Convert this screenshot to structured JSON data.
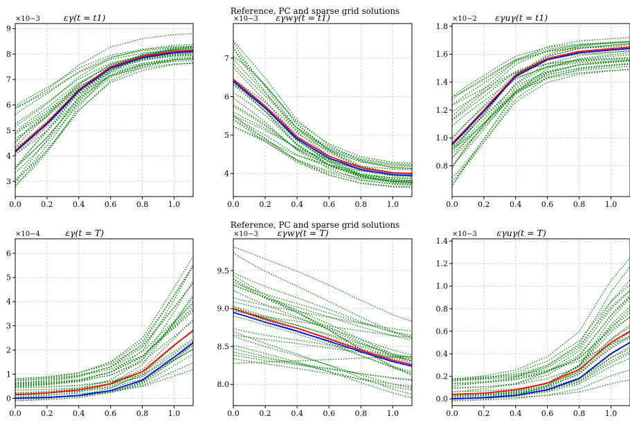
{
  "figure": {
    "suptitles": [
      "Reference, PC and sparse grid solutions",
      "Reference, PC and sparse grid solutions"
    ]
  },
  "colors": {
    "reference": "#ff0000",
    "mean": "#0000ff",
    "samples": "#008000",
    "grid": "#cccccc"
  },
  "chart_data": [
    {
      "type": "line",
      "title": "εγ(t = t1)",
      "multiplier": "×10−3",
      "xlim": [
        0,
        1.12
      ],
      "ylim": [
        2.4,
        9.2
      ],
      "xticks": [
        "0.0",
        "0.2",
        "0.4",
        "0.6",
        "0.8",
        "1.0"
      ],
      "xtick_values": [
        0,
        0.2,
        0.4,
        0.6,
        0.8,
        1.0
      ],
      "yticks": [
        "3",
        "4",
        "5",
        "6",
        "7",
        "8",
        "9"
      ],
      "ytick_values": [
        3,
        4,
        5,
        6,
        7,
        8,
        9
      ],
      "grid": true,
      "reference": {
        "x": [
          0,
          0.2,
          0.4,
          0.6,
          0.8,
          1.0,
          1.12
        ],
        "y": [
          4.2,
          5.3,
          6.6,
          7.5,
          7.9,
          8.1,
          8.15
        ]
      },
      "mean": {
        "x": [
          0,
          0.2,
          0.4,
          0.6,
          0.8,
          1.0,
          1.12
        ],
        "y": [
          4.15,
          5.25,
          6.55,
          7.45,
          7.85,
          8.05,
          8.1
        ]
      },
      "samples": {
        "count": 28,
        "x": [
          0,
          0.2,
          0.4,
          0.6,
          0.8,
          1.0,
          1.12
        ],
        "y_start_range": [
          2.7,
          6.0
        ],
        "y_end_range": [
          7.3,
          8.9
        ]
      }
    },
    {
      "type": "line",
      "title": "εγwγ(t = t1)",
      "multiplier": "×10−3",
      "xlim": [
        0,
        1.12
      ],
      "ylim": [
        3.4,
        7.9
      ],
      "xticks": [
        "0.0",
        "0.2",
        "0.4",
        "0.6",
        "0.8",
        "1.0"
      ],
      "xtick_values": [
        0,
        0.2,
        0.4,
        0.6,
        0.8,
        1.0
      ],
      "yticks": [
        "4",
        "5",
        "6",
        "7"
      ],
      "ytick_values": [
        4,
        5,
        6,
        7
      ],
      "grid": true,
      "reference": {
        "x": [
          0,
          0.2,
          0.4,
          0.6,
          0.8,
          1.0,
          1.12
        ],
        "y": [
          6.45,
          5.75,
          4.95,
          4.45,
          4.15,
          4.02,
          4.0
        ]
      },
      "mean": {
        "x": [
          0,
          0.2,
          0.4,
          0.6,
          0.8,
          1.0,
          1.12
        ],
        "y": [
          6.4,
          5.7,
          4.9,
          4.4,
          4.1,
          3.97,
          3.95
        ]
      },
      "samples": {
        "count": 28,
        "x": [
          0,
          0.2,
          0.4,
          0.6,
          0.8,
          1.0,
          1.12
        ],
        "y_start_range": [
          5.2,
          7.7
        ],
        "y_end_range": [
          3.6,
          4.4
        ]
      }
    },
    {
      "type": "line",
      "title": "εγuγ(t = t1)",
      "multiplier": "×10−2",
      "xlim": [
        0,
        1.12
      ],
      "ylim": [
        0.58,
        1.82
      ],
      "xticks": [
        "0.0",
        "0.2",
        "0.4",
        "0.6",
        "0.8",
        "1.0"
      ],
      "xtick_values": [
        0,
        0.2,
        0.4,
        0.6,
        0.8,
        1.0
      ],
      "yticks": [
        "0.8",
        "1.0",
        "1.2",
        "1.4",
        "1.6",
        "1.8"
      ],
      "ytick_values": [
        0.8,
        1.0,
        1.2,
        1.4,
        1.6,
        1.8
      ],
      "grid": true,
      "reference": {
        "x": [
          0,
          0.2,
          0.4,
          0.6,
          0.8,
          1.0,
          1.12
        ],
        "y": [
          0.96,
          1.2,
          1.45,
          1.57,
          1.62,
          1.64,
          1.65
        ]
      },
      "mean": {
        "x": [
          0,
          0.2,
          0.4,
          0.6,
          0.8,
          1.0,
          1.12
        ],
        "y": [
          0.95,
          1.19,
          1.44,
          1.56,
          1.61,
          1.63,
          1.64
        ]
      },
      "samples": {
        "count": 28,
        "x": [
          0,
          0.2,
          0.4,
          0.6,
          0.8,
          1.0,
          1.12
        ],
        "y_start_range": [
          0.63,
          1.3
        ],
        "y_end_range": [
          1.45,
          1.76
        ]
      }
    },
    {
      "type": "line",
      "title": "εγ(t = T)",
      "multiplier": "×10−4",
      "xlim": [
        0,
        1.12
      ],
      "ylim": [
        -0.3,
        6.6
      ],
      "xticks": [
        "0.0",
        "0.2",
        "0.4",
        "0.6",
        "0.8",
        "1.0"
      ],
      "xtick_values": [
        0,
        0.2,
        0.4,
        0.6,
        0.8,
        1.0
      ],
      "yticks": [
        "0",
        "1",
        "2",
        "3",
        "4",
        "5",
        "6"
      ],
      "ytick_values": [
        0,
        1,
        2,
        3,
        4,
        5,
        6
      ],
      "grid": true,
      "reference": {
        "x": [
          0,
          0.2,
          0.4,
          0.6,
          0.8,
          1.0,
          1.12
        ],
        "y": [
          0.15,
          0.22,
          0.35,
          0.6,
          1.1,
          2.2,
          2.8
        ]
      },
      "mean": {
        "x": [
          0,
          0.2,
          0.4,
          0.6,
          0.8,
          1.0,
          1.12
        ],
        "y": [
          0.0,
          0.04,
          0.12,
          0.32,
          0.75,
          1.7,
          2.3
        ]
      },
      "samples": {
        "count": 28,
        "x": [
          0,
          0.2,
          0.4,
          0.6,
          0.8,
          1.0,
          1.12
        ],
        "y_start_range": [
          -0.1,
          0.85
        ],
        "y_end_range": [
          0.5,
          6.3
        ]
      }
    },
    {
      "type": "line",
      "title": "εγwγ(t = T)",
      "multiplier": "×10−3",
      "xlim": [
        0,
        1.12
      ],
      "ylim": [
        7.72,
        9.92
      ],
      "xticks": [
        "0.0",
        "0.2",
        "0.4",
        "0.6",
        "0.8",
        "1.0"
      ],
      "xtick_values": [
        0,
        0.2,
        0.4,
        0.6,
        0.8,
        1.0
      ],
      "yticks": [
        "8.0",
        "8.5",
        "9.0",
        "9.5"
      ],
      "ytick_values": [
        8.0,
        8.5,
        9.0,
        9.5
      ],
      "grid": true,
      "reference": {
        "x": [
          0,
          0.2,
          0.4,
          0.6,
          0.8,
          1.0,
          1.12
        ],
        "y": [
          9.0,
          8.86,
          8.74,
          8.6,
          8.45,
          8.32,
          8.26
        ]
      },
      "mean": {
        "x": [
          0,
          0.2,
          0.4,
          0.6,
          0.8,
          1.0,
          1.12
        ],
        "y": [
          8.95,
          8.82,
          8.7,
          8.57,
          8.43,
          8.3,
          8.24
        ]
      },
      "samples": {
        "count": 28,
        "x": [
          0,
          0.2,
          0.4,
          0.6,
          0.8,
          1.0,
          1.12
        ],
        "y_start_range": [
          8.25,
          9.82
        ],
        "y_end_range": [
          7.75,
          8.95
        ]
      }
    },
    {
      "type": "line",
      "title": "εγuγ(t = T)",
      "multiplier": "×10−3",
      "xlim": [
        0,
        1.12
      ],
      "ylim": [
        -0.06,
        1.42
      ],
      "xticks": [
        "0.0",
        "0.2",
        "0.4",
        "0.6",
        "0.8",
        "1.0"
      ],
      "xtick_values": [
        0,
        0.2,
        0.4,
        0.6,
        0.8,
        1.0
      ],
      "yticks": [
        "0.0",
        "0.2",
        "0.4",
        "0.6",
        "0.8",
        "1.0",
        "1.2",
        "1.4"
      ],
      "ytick_values": [
        0.0,
        0.2,
        0.4,
        0.6,
        0.8,
        1.0,
        1.2,
        1.4
      ],
      "grid": true,
      "reference": {
        "x": [
          0,
          0.2,
          0.4,
          0.6,
          0.8,
          1.0,
          1.12
        ],
        "y": [
          0.04,
          0.05,
          0.08,
          0.14,
          0.26,
          0.5,
          0.6
        ]
      },
      "mean": {
        "x": [
          0,
          0.2,
          0.4,
          0.6,
          0.8,
          1.0,
          1.12
        ],
        "y": [
          0.0,
          0.01,
          0.03,
          0.08,
          0.18,
          0.4,
          0.5
        ]
      },
      "samples": {
        "count": 28,
        "x": [
          0,
          0.2,
          0.4,
          0.6,
          0.8,
          1.0,
          1.12
        ],
        "y_start_range": [
          -0.02,
          0.18
        ],
        "y_end_range": [
          0.1,
          1.35
        ]
      }
    }
  ]
}
